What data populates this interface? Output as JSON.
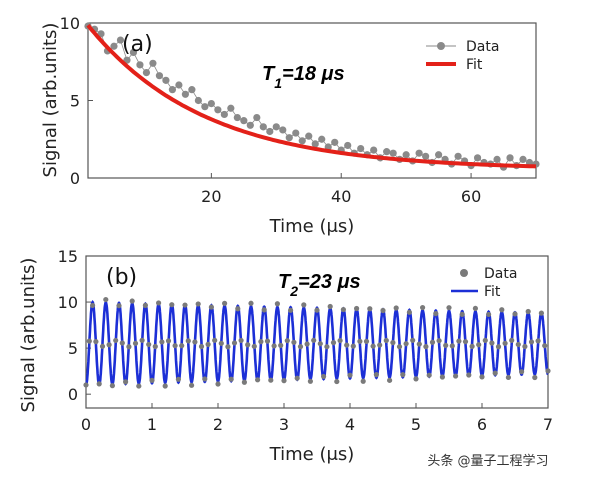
{
  "chart_data": [
    {
      "type": "scatter",
      "panel_label": "(a)",
      "xlabel": "Time (μs)",
      "ylabel": "Signal (arb.units)",
      "xlim": [
        1,
        70
      ],
      "ylim": [
        0,
        10
      ],
      "xticks": [
        20,
        40,
        60
      ],
      "yticks": [
        0,
        5,
        10
      ],
      "annotation": {
        "symbol": "T",
        "sub": "1",
        "text": "=18 μs"
      },
      "series": [
        {
          "name": "Data",
          "kind": "points",
          "color": "#8a8a8a",
          "x": [
            1,
            2,
            3,
            4,
            5,
            6,
            7,
            8,
            9,
            10,
            11,
            12,
            13,
            14,
            15,
            16,
            17,
            18,
            19,
            20,
            21,
            22,
            23,
            24,
            25,
            26,
            27,
            28,
            29,
            30,
            31,
            32,
            33,
            34,
            35,
            36,
            37,
            38,
            39,
            40,
            41,
            42,
            43,
            44,
            45,
            46,
            47,
            48,
            49,
            50,
            51,
            52,
            53,
            54,
            55,
            56,
            57,
            58,
            59,
            60,
            61,
            62,
            63,
            64,
            65,
            66,
            67,
            68,
            69,
            70
          ],
          "y": [
            9.8,
            9.6,
            9.3,
            8.2,
            8.5,
            8.9,
            7.6,
            8.1,
            7.3,
            6.8,
            7.4,
            6.6,
            6.3,
            5.7,
            6.0,
            5.4,
            5.7,
            5.0,
            4.6,
            4.8,
            4.4,
            4.1,
            4.5,
            3.9,
            3.7,
            3.4,
            3.9,
            3.3,
            3.0,
            3.3,
            3.1,
            2.6,
            2.9,
            2.4,
            2.7,
            2.2,
            2.5,
            2.0,
            2.3,
            1.8,
            2.1,
            1.6,
            1.9,
            1.5,
            1.8,
            1.3,
            1.7,
            1.6,
            1.2,
            1.5,
            1.1,
            1.6,
            1.4,
            1.0,
            1.5,
            1.2,
            0.9,
            1.4,
            1.1,
            0.8,
            1.3,
            1.0,
            0.9,
            1.2,
            0.7,
            1.3,
            0.8,
            1.2,
            1.0,
            0.9
          ]
        },
        {
          "name": "Fit",
          "kind": "curve",
          "color": "#e32119",
          "model": {
            "a": 9.3,
            "tau": 18,
            "c": 0.55
          }
        }
      ]
    },
    {
      "type": "scatter",
      "panel_label": "(b)",
      "xlabel": "Time (μs)",
      "ylabel": "Signal (arb.units)",
      "xlim": [
        0,
        7
      ],
      "ylim": [
        -1.5,
        15
      ],
      "xticks": [
        0,
        1,
        2,
        3,
        4,
        5,
        6,
        7
      ],
      "yticks": [
        0,
        5,
        10,
        15
      ],
      "annotation": {
        "symbol": "T",
        "sub": "2",
        "text": "=23 μs"
      },
      "series": [
        {
          "name": "Data",
          "kind": "points",
          "color": "#7a7a7a",
          "x_start": 0,
          "x_step": 0.05,
          "count": 141
        },
        {
          "name": "Fit",
          "kind": "curve",
          "color": "#1c2fd6",
          "model": {
            "offset": 5.5,
            "amp": 4.5,
            "freq": 5,
            "tau": 23
          }
        }
      ]
    }
  ],
  "watermark": "头条 @量子工程学习"
}
